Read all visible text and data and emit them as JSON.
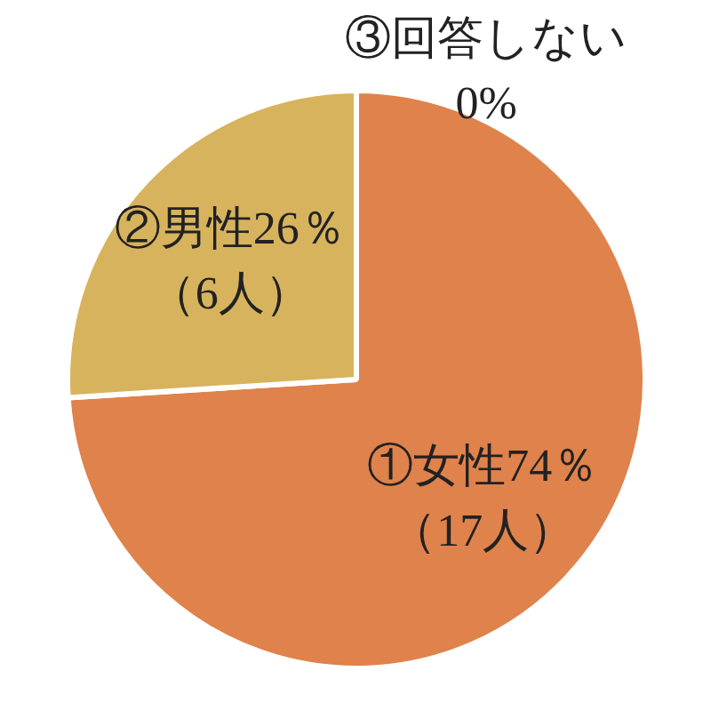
{
  "chart_data": {
    "type": "pie",
    "categories": [
      "①女性",
      "②男性",
      "③回答しない"
    ],
    "values": [
      74,
      26,
      0
    ],
    "colors": [
      "#df824b",
      "#d7b35d",
      "#a5a5a5"
    ],
    "value_labels": [
      "74％",
      "26％",
      "0%"
    ],
    "annotations": [
      "（17人）",
      "（6人）"
    ]
  }
}
